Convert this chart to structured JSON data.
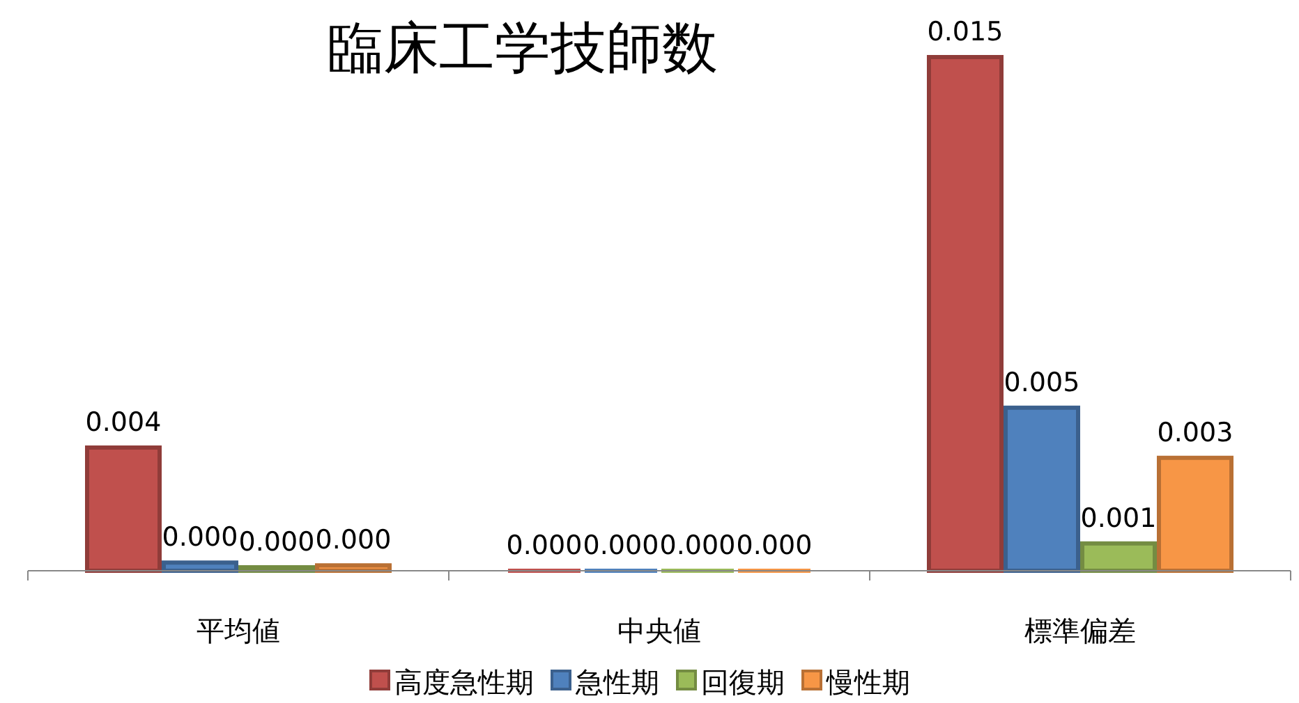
{
  "chart_data": {
    "type": "bar",
    "title": "臨床工学技師数",
    "categories": [
      "平均値",
      "中央値",
      "標準偏差"
    ],
    "series": [
      {
        "name": "高度急性期",
        "color": "#c0504d",
        "values": [
          0.0036,
          0,
          0.015
        ],
        "value_labels": [
          "0.004",
          "0.000",
          "0.015"
        ]
      },
      {
        "name": "急性期",
        "color": "#4f81bd",
        "values": [
          0.00024,
          0,
          0.00476
        ],
        "value_labels": [
          "0.000",
          "0.000",
          "0.005"
        ]
      },
      {
        "name": "回復期",
        "color": "#9bbb59",
        "values": [
          0.0001,
          0,
          0.0008
        ],
        "value_labels": [
          "0.000",
          "0.000",
          "0.001"
        ]
      },
      {
        "name": "慢性期",
        "color": "#f79646",
        "values": [
          0.00016,
          0,
          0.0033
        ],
        "value_labels": [
          "0.000",
          "0.000",
          "0.003"
        ]
      }
    ],
    "legend": "bottom"
  }
}
